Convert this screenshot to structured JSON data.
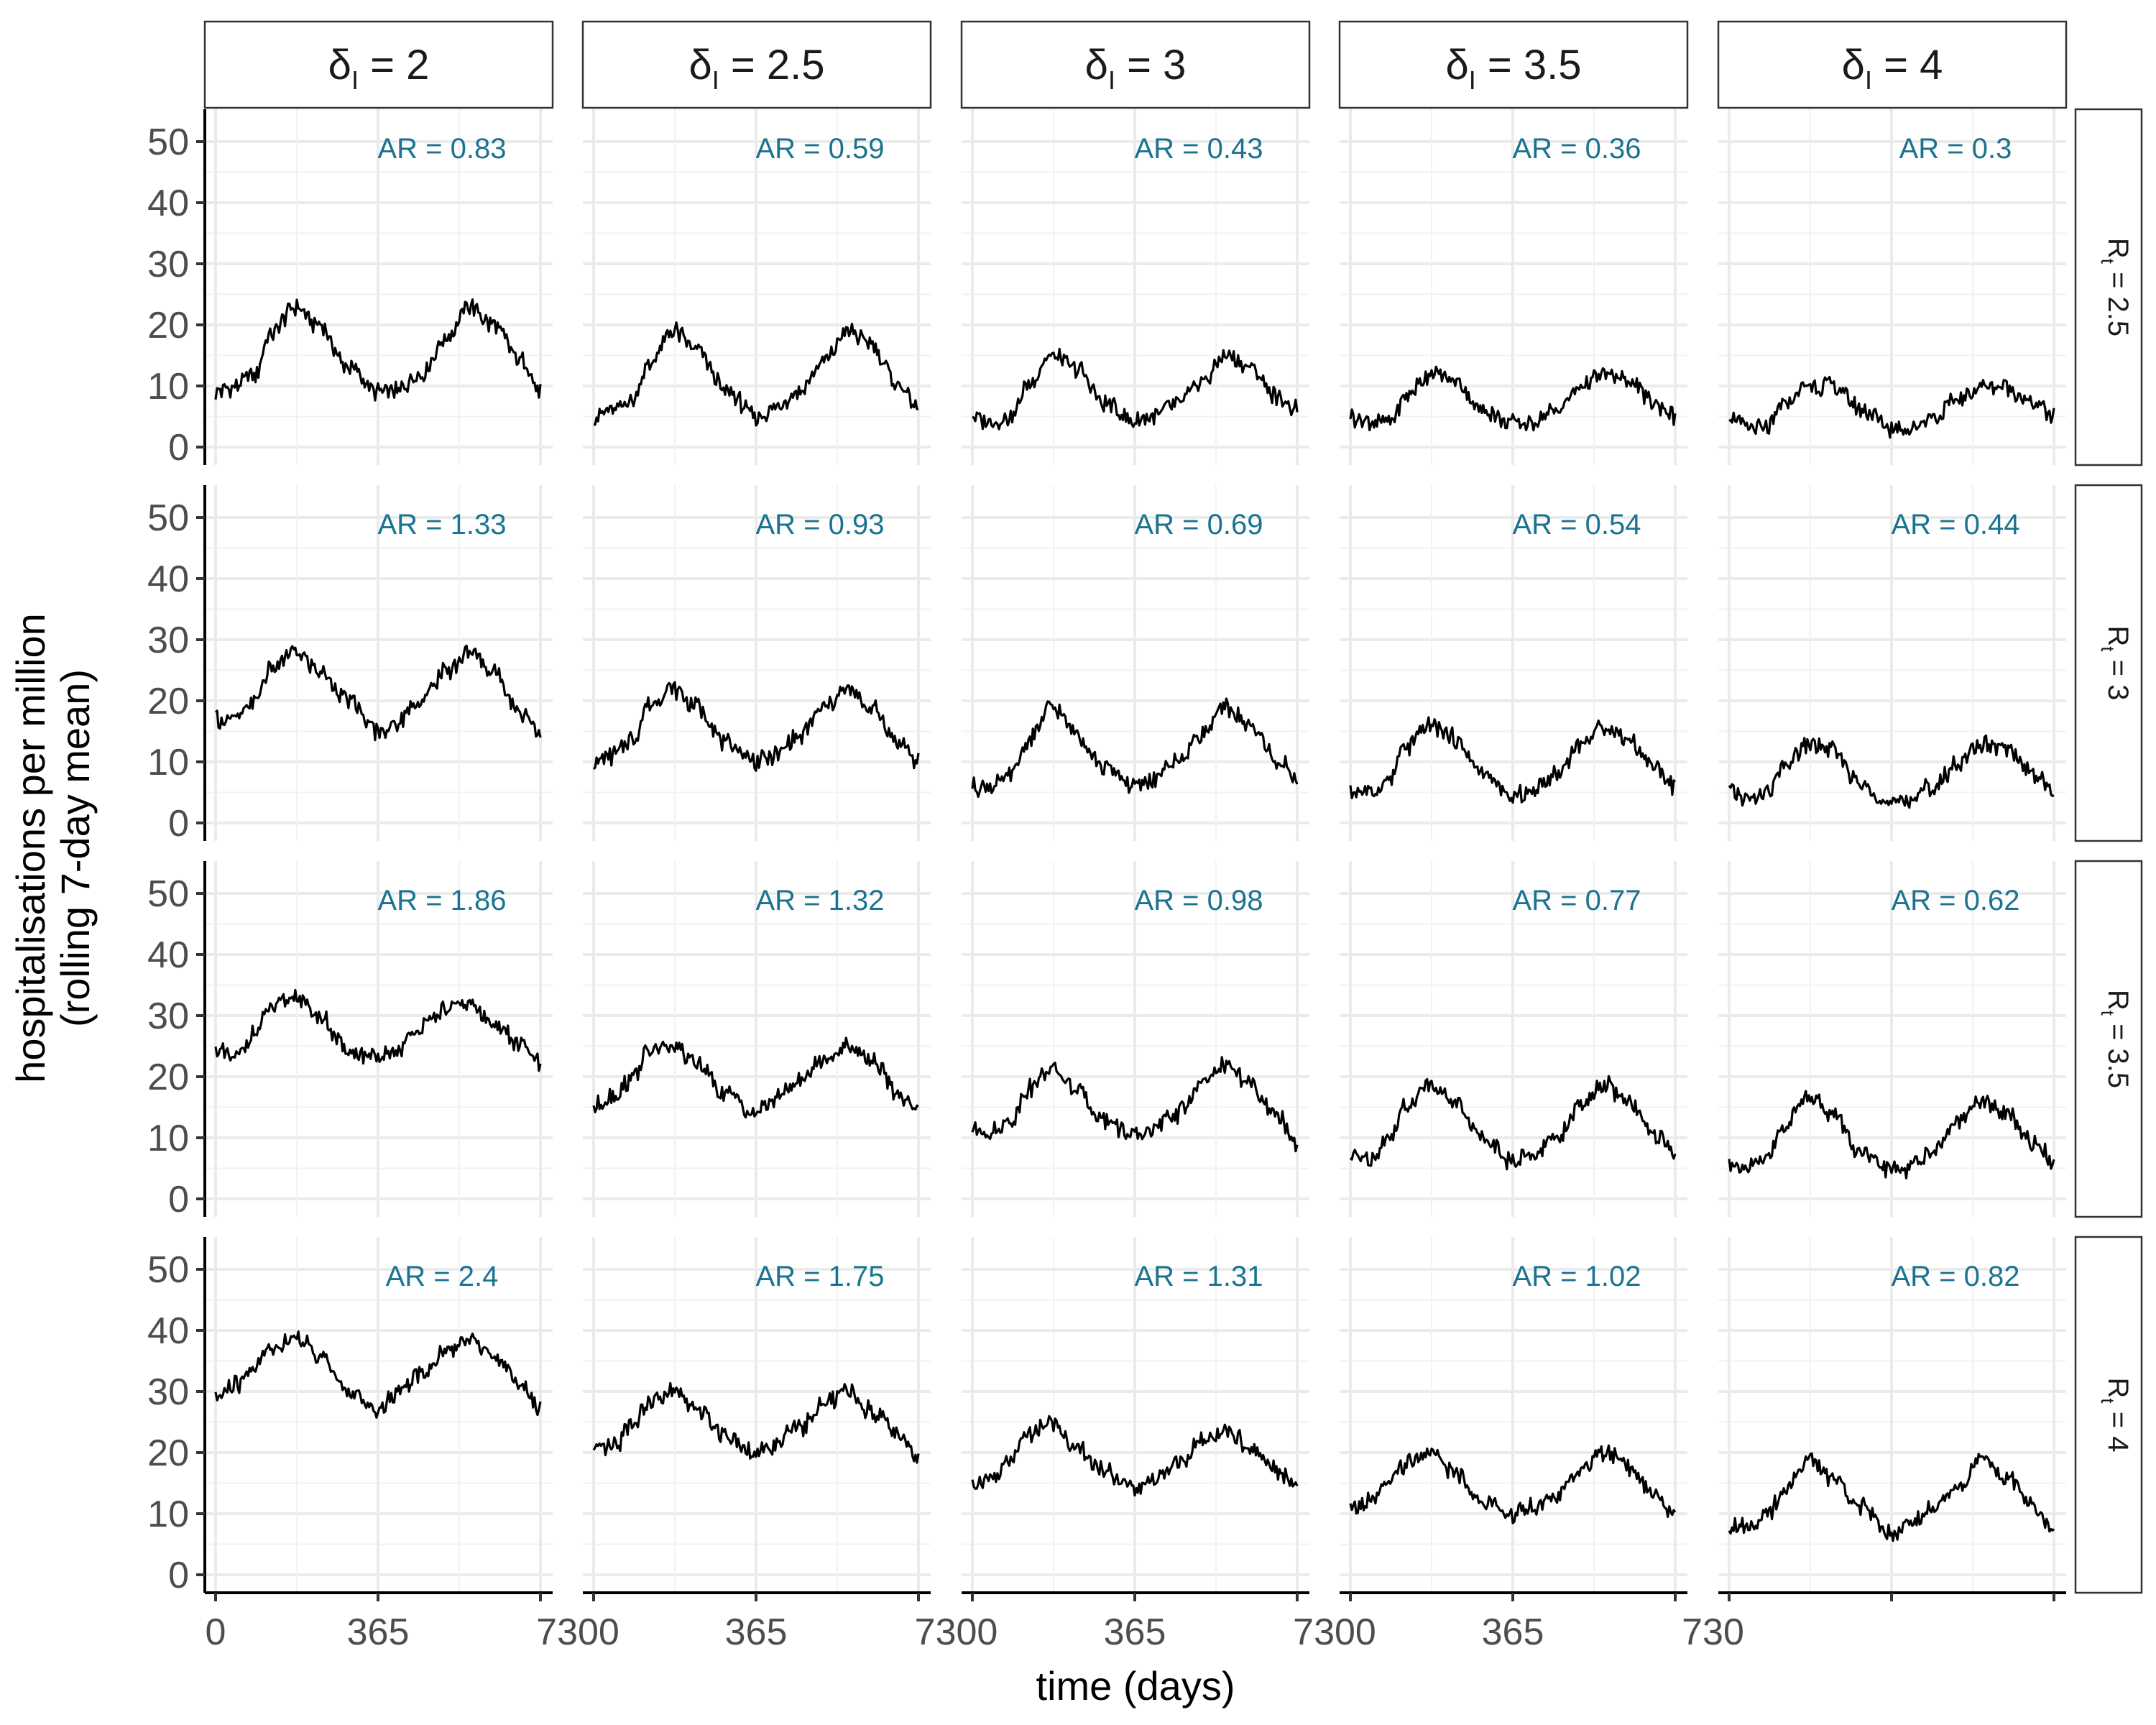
{
  "chart_data": {
    "type": "line",
    "layout": "facet-grid",
    "xlabel": "time (days)",
    "ylabel_lines": [
      "hospitalisations per million",
      "(rolling 7-day mean)"
    ],
    "xlim": [
      0,
      730
    ],
    "ylim": [
      0,
      50
    ],
    "x_ticks": [
      0,
      365,
      730
    ],
    "x_tick_labels": [
      "0",
      "365",
      "7300",
      "365",
      "7300",
      "365",
      "7300",
      "365",
      "730"
    ],
    "y_ticks": [
      0,
      10,
      20,
      30,
      40,
      50
    ],
    "y_tick_labels": [
      "0",
      "10",
      "20",
      "30",
      "40",
      "50"
    ],
    "grid": true,
    "columns": [
      {
        "symbol": "δ",
        "subscript": "I",
        "value": "2"
      },
      {
        "symbol": "δ",
        "subscript": "I",
        "value": "2.5"
      },
      {
        "symbol": "δ",
        "subscript": "I",
        "value": "3"
      },
      {
        "symbol": "δ",
        "subscript": "I",
        "value": "3.5"
      },
      {
        "symbol": "δ",
        "subscript": "I",
        "value": "4"
      }
    ],
    "rows": [
      {
        "symbol": "R",
        "subscript": "t",
        "value": "2.5"
      },
      {
        "symbol": "R",
        "subscript": "t",
        "value": "3"
      },
      {
        "symbol": "R",
        "subscript": "t",
        "value": "3.5"
      },
      {
        "symbol": "R",
        "subscript": "t",
        "value": "4"
      }
    ],
    "annotation_color": "#1a7390",
    "line_color": "#000000",
    "panels": [
      {
        "row": 0,
        "col": 0,
        "annotation": "AR = 0.83",
        "x": [
          0,
          45,
          90,
          120,
          180,
          230,
          300,
          365,
          400,
          460,
          520,
          570,
          620,
          690,
          730
        ],
        "y": [
          9,
          10,
          12,
          18,
          23,
          20,
          13,
          9,
          9,
          12,
          18,
          23,
          20,
          14,
          9
        ]
      },
      {
        "row": 0,
        "col": 1,
        "annotation": "AR = 0.59",
        "x": [
          0,
          45,
          90,
          120,
          180,
          230,
          300,
          365,
          400,
          460,
          520,
          570,
          620,
          690,
          730
        ],
        "y": [
          5,
          6,
          8,
          13,
          19,
          16,
          9,
          5,
          6,
          9,
          14,
          19,
          17,
          10,
          6
        ]
      },
      {
        "row": 0,
        "col": 2,
        "annotation": "AR = 0.43",
        "x": [
          0,
          45,
          90,
          120,
          180,
          230,
          300,
          365,
          400,
          460,
          520,
          570,
          620,
          690,
          730
        ],
        "y": [
          5,
          4,
          5,
          10,
          15,
          13,
          7,
          4,
          5,
          7,
          11,
          15,
          13,
          8,
          6
        ]
      },
      {
        "row": 0,
        "col": 3,
        "annotation": "AR = 0.36",
        "x": [
          0,
          45,
          90,
          120,
          180,
          230,
          300,
          365,
          400,
          460,
          520,
          570,
          620,
          690,
          730
        ],
        "y": [
          5,
          4,
          4,
          8,
          12,
          11,
          6,
          4,
          4,
          6,
          10,
          12,
          11,
          7,
          5
        ]
      },
      {
        "row": 0,
        "col": 4,
        "annotation": "AR = 0.3",
        "x": [
          0,
          45,
          90,
          120,
          180,
          230,
          300,
          365,
          400,
          460,
          520,
          570,
          620,
          690,
          730
        ],
        "y": [
          5,
          3,
          3,
          7,
          10,
          10,
          6,
          3,
          3,
          5,
          8,
          10,
          10,
          7,
          5
        ]
      },
      {
        "row": 1,
        "col": 0,
        "annotation": "AR = 1.33",
        "x": [
          0,
          45,
          90,
          120,
          180,
          230,
          300,
          365,
          400,
          460,
          520,
          570,
          620,
          690,
          730
        ],
        "y": [
          17,
          17,
          20,
          25,
          28,
          25,
          20,
          15,
          16,
          20,
          25,
          28,
          25,
          18,
          15
        ]
      },
      {
        "row": 1,
        "col": 1,
        "annotation": "AR = 0.93",
        "x": [
          0,
          45,
          90,
          120,
          180,
          230,
          300,
          365,
          400,
          460,
          520,
          570,
          620,
          690,
          730
        ],
        "y": [
          10,
          11,
          14,
          19,
          22,
          19,
          13,
          10,
          11,
          14,
          19,
          22,
          19,
          13,
          10
        ]
      },
      {
        "row": 1,
        "col": 2,
        "annotation": "AR = 0.69",
        "x": [
          0,
          45,
          90,
          120,
          180,
          230,
          300,
          365,
          400,
          460,
          520,
          570,
          620,
          690,
          730
        ],
        "y": [
          6,
          6,
          8,
          13,
          19,
          15,
          9,
          6,
          7,
          10,
          15,
          19,
          16,
          10,
          7
        ]
      },
      {
        "row": 1,
        "col": 3,
        "annotation": "AR = 0.54",
        "x": [
          0,
          45,
          90,
          120,
          180,
          230,
          300,
          365,
          400,
          460,
          520,
          570,
          620,
          690,
          730
        ],
        "y": [
          5,
          5,
          7,
          12,
          16,
          14,
          8,
          4,
          5,
          8,
          13,
          16,
          14,
          9,
          6
        ]
      },
      {
        "row": 1,
        "col": 4,
        "annotation": "AR = 0.44",
        "x": [
          0,
          45,
          90,
          120,
          180,
          230,
          300,
          365,
          400,
          460,
          520,
          570,
          620,
          690,
          730
        ],
        "y": [
          5,
          4,
          5,
          9,
          13,
          12,
          6,
          3,
          4,
          6,
          10,
          13,
          12,
          8,
          5
        ]
      },
      {
        "row": 2,
        "col": 0,
        "annotation": "AR = 1.86",
        "x": [
          0,
          45,
          90,
          120,
          180,
          230,
          300,
          365,
          400,
          460,
          520,
          570,
          620,
          690,
          730
        ],
        "y": [
          24,
          23,
          27,
          31,
          33,
          30,
          24,
          23,
          24,
          28,
          31,
          32,
          29,
          25,
          22
        ]
      },
      {
        "row": 2,
        "col": 1,
        "annotation": "AR = 1.32",
        "x": [
          0,
          45,
          90,
          120,
          180,
          230,
          300,
          365,
          400,
          460,
          520,
          570,
          620,
          690,
          730
        ],
        "y": [
          15,
          17,
          20,
          24,
          25,
          22,
          17,
          14,
          16,
          19,
          23,
          25,
          23,
          17,
          15
        ]
      },
      {
        "row": 2,
        "col": 2,
        "annotation": "AR = 0.98",
        "x": [
          0,
          45,
          90,
          120,
          180,
          230,
          300,
          365,
          400,
          460,
          520,
          570,
          620,
          690,
          730
        ],
        "y": [
          11,
          11,
          13,
          18,
          21,
          18,
          13,
          10,
          11,
          14,
          19,
          22,
          19,
          13,
          9
        ]
      },
      {
        "row": 2,
        "col": 3,
        "annotation": "AR = 0.77",
        "x": [
          0,
          45,
          90,
          120,
          180,
          230,
          300,
          365,
          400,
          460,
          520,
          570,
          620,
          690,
          730
        ],
        "y": [
          7,
          7,
          10,
          15,
          19,
          16,
          10,
          6,
          7,
          10,
          15,
          19,
          16,
          10,
          7
        ]
      },
      {
        "row": 2,
        "col": 4,
        "annotation": "AR = 0.62",
        "x": [
          0,
          45,
          90,
          120,
          180,
          230,
          300,
          365,
          400,
          460,
          520,
          570,
          620,
          690,
          730
        ],
        "y": [
          6,
          5,
          7,
          12,
          17,
          14,
          7,
          5,
          5,
          8,
          13,
          16,
          14,
          9,
          6
        ]
      },
      {
        "row": 3,
        "col": 0,
        "annotation": "AR = 2.4",
        "x": [
          0,
          45,
          90,
          120,
          180,
          230,
          300,
          365,
          400,
          460,
          520,
          570,
          620,
          690,
          730
        ],
        "y": [
          29,
          31,
          34,
          37,
          39,
          36,
          30,
          27,
          29,
          33,
          37,
          39,
          36,
          31,
          27
        ]
      },
      {
        "row": 3,
        "col": 1,
        "annotation": "AR = 1.75",
        "x": [
          0,
          45,
          90,
          120,
          180,
          230,
          300,
          365,
          400,
          460,
          520,
          570,
          620,
          690,
          730
        ],
        "y": [
          20,
          21,
          25,
          28,
          30,
          27,
          23,
          20,
          21,
          24,
          28,
          30,
          27,
          23,
          19
        ]
      },
      {
        "row": 3,
        "col": 2,
        "annotation": "AR = 1.31",
        "x": [
          0,
          45,
          90,
          120,
          180,
          230,
          300,
          365,
          400,
          460,
          520,
          570,
          620,
          690,
          730
        ],
        "y": [
          15,
          16,
          19,
          23,
          25,
          21,
          17,
          14,
          15,
          18,
          22,
          24,
          21,
          17,
          14
        ]
      },
      {
        "row": 3,
        "col": 3,
        "annotation": "AR = 1.02",
        "x": [
          0,
          45,
          90,
          120,
          180,
          230,
          300,
          365,
          400,
          460,
          520,
          570,
          620,
          690,
          730
        ],
        "y": [
          11,
          12,
          15,
          18,
          20,
          17,
          12,
          10,
          11,
          13,
          17,
          20,
          18,
          13,
          10
        ]
      },
      {
        "row": 3,
        "col": 4,
        "annotation": "AR = 0.82",
        "x": [
          0,
          45,
          90,
          120,
          180,
          230,
          300,
          365,
          400,
          460,
          520,
          570,
          620,
          690,
          730
        ],
        "y": [
          8,
          8,
          10,
          14,
          19,
          16,
          11,
          7,
          8,
          11,
          15,
          19,
          16,
          11,
          7
        ]
      }
    ]
  }
}
